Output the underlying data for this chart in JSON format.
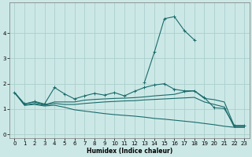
{
  "xlabel": "Humidex (Indice chaleur)",
  "ylabel": "",
  "background_color": "#cce8e6",
  "grid_color": "#aacfcc",
  "line_color": "#1a6b6b",
  "x_values": [
    0,
    1,
    2,
    3,
    4,
    5,
    6,
    7,
    8,
    9,
    10,
    11,
    12,
    13,
    14,
    15,
    16,
    17,
    18,
    19,
    20,
    21,
    22,
    23
  ],
  "line1_y": [
    1.65,
    1.2,
    1.3,
    1.2,
    1.85,
    1.6,
    1.4,
    1.52,
    1.62,
    1.55,
    1.65,
    1.52,
    1.7,
    1.85,
    1.95,
    2.0,
    1.78,
    1.72,
    1.72,
    1.45,
    1.05,
    1.02,
    0.35,
    0.35
  ],
  "line2_y": [
    1.65,
    1.2,
    1.28,
    1.17,
    1.28,
    1.28,
    1.28,
    1.35,
    1.38,
    1.4,
    1.42,
    1.43,
    1.45,
    1.48,
    1.52,
    1.55,
    1.58,
    1.68,
    1.72,
    1.42,
    1.37,
    1.28,
    0.33,
    0.33
  ],
  "line3_y": [
    1.65,
    1.15,
    1.22,
    1.15,
    1.22,
    1.18,
    1.18,
    1.22,
    1.25,
    1.28,
    1.3,
    1.32,
    1.33,
    1.36,
    1.38,
    1.4,
    1.42,
    1.44,
    1.46,
    1.28,
    1.18,
    1.08,
    0.28,
    0.28
  ],
  "line4_y": [
    1.65,
    1.15,
    1.18,
    1.12,
    1.15,
    1.07,
    0.97,
    0.92,
    0.87,
    0.82,
    0.78,
    0.75,
    0.72,
    0.68,
    0.63,
    0.6,
    0.56,
    0.52,
    0.48,
    0.43,
    0.38,
    0.32,
    0.28,
    0.28
  ],
  "line5_y": [
    null,
    null,
    null,
    null,
    null,
    null,
    null,
    null,
    null,
    null,
    null,
    null,
    null,
    2.05,
    3.25,
    4.57,
    4.65,
    4.1,
    3.73,
    null,
    null,
    null,
    null,
    null
  ],
  "ylim": [
    -0.15,
    5.2
  ],
  "xlim": [
    -0.5,
    23.5
  ],
  "yticks": [
    0,
    1,
    2,
    3,
    4
  ],
  "xticks": [
    0,
    1,
    2,
    3,
    4,
    5,
    6,
    7,
    8,
    9,
    10,
    11,
    12,
    13,
    14,
    15,
    16,
    17,
    18,
    19,
    20,
    21,
    22,
    23
  ]
}
